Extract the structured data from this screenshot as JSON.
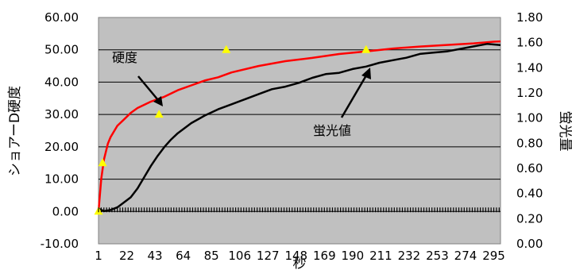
{
  "chart_data": {
    "type": "line",
    "title": "",
    "xlabel": "秒",
    "ylabel_left": "ショアーD硬度",
    "ylabel_right": "蛍光量",
    "x_tick_labels": [
      "1",
      "22",
      "43",
      "64",
      "85",
      "106",
      "127",
      "148",
      "169",
      "190",
      "211",
      "232",
      "253",
      "274",
      "295"
    ],
    "x_range": [
      1,
      300
    ],
    "y_left_ticks": [
      "60.00",
      "50.00",
      "40.00",
      "30.00",
      "20.00",
      "10.00",
      "0.00",
      "-10.00"
    ],
    "y_left_range": [
      -10,
      60
    ],
    "y_right_ticks": [
      "1.80",
      "1.60",
      "1.40",
      "1.20",
      "1.00",
      "0.80",
      "0.60",
      "0.40",
      "0.20",
      "0.00"
    ],
    "y_right_range": [
      0,
      1.8
    ],
    "grid": true,
    "plot_background": "#c0c0c0",
    "annotations": [
      {
        "text": "硬度",
        "target_series": "hardness"
      },
      {
        "text": "蛍光値",
        "target_series": "fluorescence"
      }
    ],
    "series": [
      {
        "id": "hardness",
        "axis": "left",
        "color": "#ff0000",
        "style": "line",
        "x": [
          1,
          3,
          5,
          8,
          10,
          15,
          20,
          25,
          30,
          40,
          50,
          60,
          70,
          80,
          90,
          100,
          120,
          140,
          160,
          180,
          200,
          220,
          240,
          260,
          280,
          295,
          300
        ],
        "values": [
          0,
          10,
          16,
          21,
          23,
          26.5,
          28.5,
          30.5,
          32,
          34,
          35.5,
          37.5,
          39,
          40.5,
          41.5,
          43,
          45,
          46.5,
          47.5,
          48.7,
          49.5,
          50.4,
          51,
          51.5,
          52,
          52.5,
          52.6
        ]
      },
      {
        "id": "fluorescence",
        "axis": "right",
        "color": "#000000",
        "style": "line",
        "x": [
          1,
          5,
          10,
          15,
          20,
          25,
          30,
          35,
          40,
          45,
          50,
          55,
          60,
          70,
          80,
          90,
          100,
          110,
          120,
          130,
          140,
          150,
          160,
          170,
          180,
          190,
          200,
          210,
          220,
          230,
          240,
          250,
          260,
          270,
          280,
          290,
          300
        ],
        "values": [
          0.28,
          0.26,
          0.27,
          0.29,
          0.33,
          0.37,
          0.44,
          0.53,
          0.62,
          0.7,
          0.77,
          0.83,
          0.88,
          0.96,
          1.02,
          1.07,
          1.11,
          1.15,
          1.19,
          1.23,
          1.25,
          1.28,
          1.32,
          1.35,
          1.36,
          1.39,
          1.41,
          1.44,
          1.46,
          1.48,
          1.51,
          1.52,
          1.53,
          1.55,
          1.57,
          1.59,
          1.58
        ]
      },
      {
        "id": "hardness-markers",
        "axis": "left",
        "color": "#ffff00",
        "style": "triangle-markers",
        "x": [
          1,
          4,
          46,
          96,
          200
        ],
        "values": [
          0,
          15,
          30,
          50,
          50
        ]
      },
      {
        "id": "baseline-markers",
        "axis": "left",
        "color": "#000000",
        "style": "dash-markers",
        "x_start": 1,
        "x_end": 300,
        "value": 0.5
      }
    ]
  }
}
